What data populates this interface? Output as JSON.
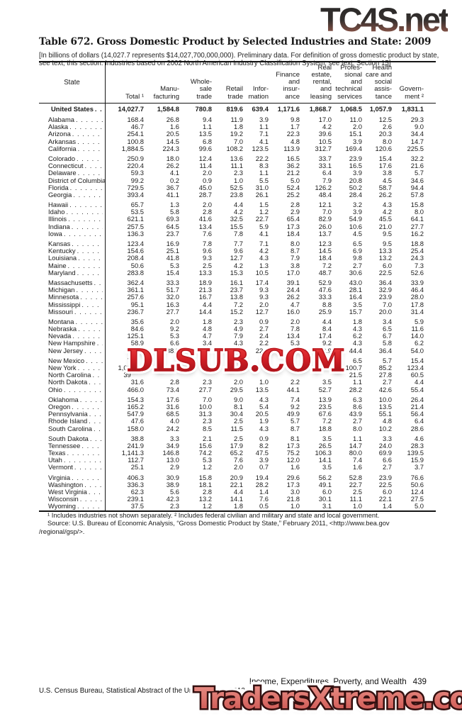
{
  "watermarks": {
    "top_right": "TC4S.net",
    "middle": "DLSUB.COM",
    "bottom": "TradersXtreme.com",
    "colors": {
      "tc4s_dark": "#2a2a2a",
      "tc4s_rust": "#8a574c",
      "dlsub_red": "#d41f26",
      "traders_salmon": "#db7069"
    }
  },
  "title": "Table 672. Gross Domestic Product by Selected Industries and State: 2009",
  "note": "[In billions of dollars (14,027.7 represents $14,027,700,000,000). Preliminary data. For definition of gross domestic product by state, see text, this section. Industries based on 2002 North American Industry Classification System; see text, Section 15]",
  "table": {
    "state_header": "State",
    "columns": [
      "Total ¹",
      "Manu-\nfacturing",
      "Whole-\nsale\ntrade",
      "Retail\ntrade",
      "Infor-\nmation",
      "Finance\nand\ninsur-\nance",
      "Real\nestate,\nrental,\nand\nleasing",
      "Profes-\nsional\nand\ntechnical\nservices",
      "Health\ncare and\nsocial\nassis-\ntance",
      "Govern-\nment ²"
    ],
    "us_row": {
      "name": "United States",
      "values": [
        "14,027.7",
        "1,584.8",
        "780.8",
        "819.6",
        "639.4",
        "1,171.6",
        "1,868.7",
        "1,068.5",
        "1,057.9",
        "1,831.1"
      ]
    },
    "groups": [
      [
        {
          "name": "Alabama",
          "values": [
            "168.4",
            "26.8",
            "9.4",
            "11.9",
            "3.9",
            "9.8",
            "17.0",
            "11.0",
            "12.5",
            "29.3"
          ]
        },
        {
          "name": "Alaska",
          "values": [
            "46.7",
            "1.6",
            "1.1",
            "1.8",
            "1.1",
            "1.7",
            "4.2",
            "2.0",
            "2.6",
            "9.0"
          ]
        },
        {
          "name": "Arizona",
          "values": [
            "254.1",
            "20.5",
            "13.5",
            "19.2",
            "7.1",
            "22.3",
            "39.6",
            "15.1",
            "20.3",
            "34.4"
          ]
        },
        {
          "name": "Arkansas",
          "values": [
            "100.8",
            "14.5",
            "6.8",
            "7.0",
            "4.1",
            "4.8",
            "10.5",
            "3.9",
            "8.0",
            "14.7"
          ]
        },
        {
          "name": "California",
          "values": [
            "1,884.5",
            "224.3",
            "99.6",
            "108.2",
            "123.5",
            "113.9",
            "312.7",
            "169.4",
            "120.6",
            "225.5"
          ]
        }
      ],
      [
        {
          "name": "Colorado",
          "values": [
            "250.9",
            "18.0",
            "12.4",
            "13.6",
            "22.2",
            "16.5",
            "33.7",
            "23.9",
            "15.4",
            "32.2"
          ]
        },
        {
          "name": "Connecticut",
          "values": [
            "220.4",
            "26.2",
            "11.4",
            "11.1",
            "8.3",
            "36.2",
            "33.1",
            "16.5",
            "17.6",
            "21.6"
          ]
        },
        {
          "name": "Delaware",
          "values": [
            "59.3",
            "4.1",
            "2.0",
            "2.3",
            "1.1",
            "21.2",
            "6.4",
            "3.9",
            "3.8",
            "5.7"
          ]
        },
        {
          "name": "District of Columbia",
          "values": [
            "99.2",
            "0.2",
            "0.9",
            "1.0",
            "5.5",
            "5.0",
            "7.9",
            "20.8",
            "4.5",
            "34.6"
          ]
        },
        {
          "name": "Florida",
          "values": [
            "729.5",
            "36.7",
            "45.0",
            "52.5",
            "31.0",
            "52.4",
            "126.2",
            "50.2",
            "58.7",
            "94.4"
          ]
        },
        {
          "name": "Georgia",
          "values": [
            "393.4",
            "41.1",
            "28.7",
            "23.8",
            "26.1",
            "25.2",
            "48.4",
            "28.4",
            "26.2",
            "57.8"
          ]
        }
      ],
      [
        {
          "name": "Hawaii",
          "values": [
            "65.7",
            "1.3",
            "2.0",
            "4.4",
            "1.5",
            "2.8",
            "12.1",
            "3.2",
            "4.3",
            "15.8"
          ]
        },
        {
          "name": "Idaho",
          "values": [
            "53.5",
            "5.8",
            "2.8",
            "4.2",
            "1.2",
            "2.9",
            "7.0",
            "3.9",
            "4.2",
            "8.0"
          ]
        },
        {
          "name": "Illinois",
          "values": [
            "621.1",
            "69.3",
            "41.6",
            "32.5",
            "22.7",
            "65.4",
            "82.9",
            "54.9",
            "45.5",
            "64.1"
          ]
        },
        {
          "name": "Indiana",
          "values": [
            "257.5",
            "64.5",
            "13.4",
            "15.5",
            "5.9",
            "17.3",
            "26.0",
            "10.6",
            "21.0",
            "27.7"
          ]
        },
        {
          "name": "Iowa",
          "values": [
            "136.3",
            "23.7",
            "7.6",
            "7.8",
            "4.1",
            "18.4",
            "13.7",
            "4.5",
            "9.5",
            "16.2"
          ]
        }
      ],
      [
        {
          "name": "Kansas",
          "values": [
            "123.4",
            "16.9",
            "7.8",
            "7.7",
            "7.1",
            "8.0",
            "12.3",
            "6.5",
            "9.5",
            "18.8"
          ]
        },
        {
          "name": "Kentucky",
          "values": [
            "154.6",
            "25.1",
            "9.6",
            "9.6",
            "4.2",
            "8.7",
            "14.5",
            "6.9",
            "13.3",
            "25.4"
          ]
        },
        {
          "name": "Louisiana",
          "values": [
            "208.4",
            "41.8",
            "9.3",
            "12.7",
            "4.3",
            "7.9",
            "18.4",
            "9.8",
            "13.2",
            "24.3"
          ]
        },
        {
          "name": "Maine",
          "values": [
            "50.6",
            "5.3",
            "2.5",
            "4.2",
            "1.3",
            "3.8",
            "7.2",
            "2.7",
            "6.0",
            "7.3"
          ]
        },
        {
          "name": "Maryland",
          "values": [
            "283.8",
            "15.4",
            "13.3",
            "15.3",
            "10.5",
            "17.0",
            "48.7",
            "30.6",
            "22.5",
            "52.6"
          ]
        }
      ],
      [
        {
          "name": "Massachusetts",
          "values": [
            "362.4",
            "33.3",
            "18.9",
            "16.1",
            "17.4",
            "39.1",
            "52.9",
            "43.0",
            "36.4",
            "33.9"
          ]
        },
        {
          "name": "Michigan",
          "values": [
            "361.1",
            "51.7",
            "21.3",
            "23.7",
            "9.3",
            "24.4",
            "47.6",
            "28.1",
            "32.9",
            "46.4"
          ]
        },
        {
          "name": "Minnesota",
          "values": [
            "257.6",
            "32.0",
            "16.7",
            "13.8",
            "9.3",
            "26.2",
            "33.3",
            "16.4",
            "23.9",
            "28.0"
          ]
        },
        {
          "name": "Mississippi",
          "values": [
            "95.1",
            "16.3",
            "4.4",
            "7.2",
            "2.0",
            "4.7",
            "8.8",
            "3.5",
            "7.0",
            "17.8"
          ]
        },
        {
          "name": "Missouri",
          "values": [
            "236.7",
            "27.7",
            "14.4",
            "15.2",
            "12.7",
            "16.0",
            "25.9",
            "15.7",
            "20.0",
            "31.4"
          ]
        }
      ],
      [
        {
          "name": "Montana",
          "values": [
            "35.6",
            "2.0",
            "1.8",
            "2.3",
            "0.9",
            "2.0",
            "4.4",
            "1.8",
            "3.4",
            "5.9"
          ]
        },
        {
          "name": "Nebraska",
          "values": [
            "84.6",
            "9.2",
            "4.8",
            "4.9",
            "2.7",
            "7.8",
            "8.4",
            "4.3",
            "6.5",
            "11.6"
          ]
        },
        {
          "name": "Nevada",
          "values": [
            "125.1",
            "5.3",
            "4.7",
            "7.9",
            "2.4",
            "13.4",
            "17.4",
            "6.2",
            "6.7",
            "14.0"
          ]
        },
        {
          "name": "New Hampshire",
          "values": [
            "58.9",
            "6.6",
            "3.4",
            "4.3",
            "2.2",
            "5.3",
            "9.2",
            "4.3",
            "5.8",
            "6.2"
          ]
        },
        {
          "name": "New Jersey",
          "values": [
            "478.4",
            "38.8",
            "35.3",
            "27.7",
            "22.3",
            "42.0",
            "83.9",
            "44.4",
            "36.4",
            "54.0"
          ]
        }
      ],
      [
        {
          "name": "New Mexico",
          "values": [
            "7       ",
            "",
            "",
            "",
            "",
            "",
            "",
            "6.5",
            "5.7",
            "15.4"
          ]
        },
        {
          "name": "New York",
          "values": [
            "1,08       ",
            "",
            "",
            "",
            "",
            "",
            "",
            "100.7",
            "85.2",
            "123.4"
          ]
        },
        {
          "name": "North Carolina",
          "values": [
            "39       ",
            "",
            "",
            "",
            "",
            "",
            "",
            "21.5",
            "27.8",
            "60.5"
          ]
        },
        {
          "name": "North Dakota",
          "values": [
            "31.6",
            "2.8",
            "2.3",
            "2.0",
            "1.0",
            "2.2",
            "3.5",
            "1.1",
            "2.7",
            "4.4"
          ]
        },
        {
          "name": "Ohio",
          "values": [
            "466.0",
            "73.4",
            "27.7",
            "29.5",
            "13.5",
            "44.1",
            "52.7",
            "28.2",
            "42.6",
            "55.4"
          ]
        }
      ],
      [
        {
          "name": "Oklahoma",
          "values": [
            "154.3",
            "17.6",
            "7.0",
            "9.0",
            "4.3",
            "7.4",
            "13.9",
            "6.3",
            "10.0",
            "26.4"
          ]
        },
        {
          "name": "Oregon",
          "values": [
            "165.2",
            "31.6",
            "10.0",
            "8.1",
            "5.4",
            "9.2",
            "23.5",
            "8.6",
            "13.5",
            "21.4"
          ]
        },
        {
          "name": "Pennsylvania",
          "values": [
            "547.9",
            "68.5",
            "31.3",
            "30.4",
            "20.5",
            "49.9",
            "67.6",
            "43.9",
            "55.1",
            "56.4"
          ]
        },
        {
          "name": "Rhode Island",
          "values": [
            "47.6",
            "4.0",
            "2.3",
            "2.5",
            "1.9",
            "5.7",
            "7.2",
            "2.7",
            "4.8",
            "6.4"
          ]
        },
        {
          "name": "South Carolina",
          "values": [
            "158.0",
            "24.2",
            "8.5",
            "11.5",
            "4.3",
            "8.7",
            "18.8",
            "8.0",
            "10.2",
            "28.6"
          ]
        }
      ],
      [
        {
          "name": "South Dakota",
          "values": [
            "38.8",
            "3.3",
            "2.1",
            "2.5",
            "0.9",
            "8.1",
            "3.5",
            "1.1",
            "3.3",
            "4.6"
          ]
        },
        {
          "name": "Tennessee",
          "values": [
            "241.9",
            "34.9",
            "15.6",
            "17.9",
            "8.2",
            "17.3",
            "26.5",
            "14.7",
            "24.0",
            "28.3"
          ]
        },
        {
          "name": "Texas",
          "values": [
            "1,141.3",
            "146.8",
            "74.2",
            "65.2",
            "47.5",
            "75.2",
            "106.3",
            "80.0",
            "69.9",
            "139.5"
          ]
        },
        {
          "name": "Utah",
          "values": [
            "112.7",
            "13.0",
            "5.3",
            "7.6",
            "3.9",
            "12.0",
            "14.1",
            "7.4",
            "6.6",
            "15.9"
          ]
        },
        {
          "name": "Vermont",
          "values": [
            "25.1",
            "2.9",
            "1.2",
            "2.0",
            "0.7",
            "1.6",
            "3.5",
            "1.6",
            "2.7",
            "3.7"
          ]
        }
      ],
      [
        {
          "name": "Virginia",
          "values": [
            "406.3",
            "30.9",
            "15.8",
            "20.9",
            "19.4",
            "29.6",
            "56.2",
            "52.8",
            "23.9",
            "76.6"
          ]
        },
        {
          "name": "Washington",
          "values": [
            "336.3",
            "38.9",
            "18.1",
            "22.1",
            "28.2",
            "17.3",
            "49.1",
            "22.7",
            "22.5",
            "50.6"
          ]
        },
        {
          "name": "West Virginia",
          "values": [
            "62.3",
            "5.6",
            "2.8",
            "4.4",
            "1.4",
            "3.0",
            "6.0",
            "2.5",
            "6.0",
            "12.4"
          ]
        },
        {
          "name": "Wisconsin",
          "values": [
            "239.1",
            "42.3",
            "13.2",
            "14.1",
            "7.6",
            "21.8",
            "30.1",
            "11.1",
            "22.1",
            "27.5"
          ]
        },
        {
          "name": "Wyoming",
          "values": [
            "37.5",
            "2.3",
            "1.2",
            "1.8",
            "0.5",
            "1.0",
            "3.1",
            "1.0",
            "1.4",
            "5.0"
          ]
        }
      ]
    ]
  },
  "footnotes": [
    "¹ Includes industries not shown separately. ² Includes federal civilian and military and state and local government.",
    "Source: U.S. Bureau of Economic Analysis, “Gross Domestic Product by State,” February 2011, <http://www.bea.gov",
    "/regional/gsp/>."
  ],
  "footer": {
    "section": "Income, Expenditures, Poverty, and Wealth",
    "page": "439",
    "left": "U.S. Census Bureau, Statistical Abstract of the United States: 2012"
  }
}
